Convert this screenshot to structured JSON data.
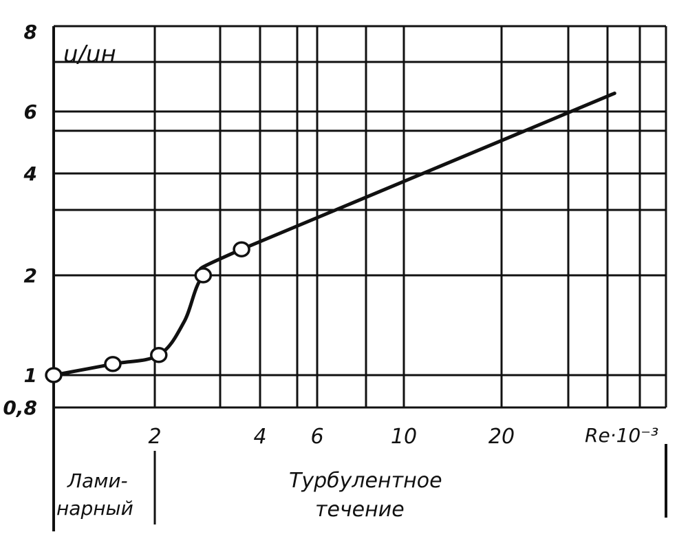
{
  "chart_data": {
    "type": "line",
    "title": "",
    "ylabel": "u/uн",
    "xlabel": "Re·10⁻³",
    "x_scale": "log",
    "y_scale": "log",
    "xlim": [
      1,
      60
    ],
    "ylim": [
      0.8,
      8
    ],
    "grid": true,
    "x_gridlines": [
      1,
      2,
      3,
      4,
      5,
      6,
      8,
      10,
      20,
      30,
      40,
      50,
      60
    ],
    "y_gridlines": [
      0.8,
      1,
      2,
      3,
      4,
      5,
      6,
      7,
      8
    ],
    "x_tick_labels": [
      {
        "value": 2,
        "label": "2"
      },
      {
        "value": 4,
        "label": "4"
      },
      {
        "value": 6,
        "label": "6"
      },
      {
        "value": 10,
        "label": "10"
      },
      {
        "value": 20,
        "label": "20"
      }
    ],
    "y_tick_labels": [
      {
        "value": 8,
        "label": "8"
      },
      {
        "value": 6,
        "label": "6"
      },
      {
        "value": 4,
        "label": "4"
      },
      {
        "value": 2,
        "label": "2"
      },
      {
        "value": 1,
        "label": "1"
      },
      {
        "value": 0.8,
        "label": "0,8"
      }
    ],
    "series": [
      {
        "markers": "open-circle",
        "points": [
          [
            1,
            1
          ],
          [
            1.5,
            1.08
          ],
          [
            2.05,
            1.15
          ],
          [
            2.7,
            2.0
          ],
          [
            3.5,
            2.35
          ]
        ],
        "curve": [
          [
            1,
            1
          ],
          [
            1.5,
            1.08
          ],
          [
            2.05,
            1.15
          ],
          [
            2.4,
            1.45
          ],
          [
            2.7,
            2.0
          ],
          [
            3.5,
            2.35
          ],
          [
            42,
            6.35
          ]
        ]
      }
    ],
    "regions": [
      {
        "line1": "Лами-",
        "line2": "нарный"
      },
      {
        "line1": "Турбулентное",
        "line2": "течение"
      }
    ],
    "color": "#111111"
  }
}
